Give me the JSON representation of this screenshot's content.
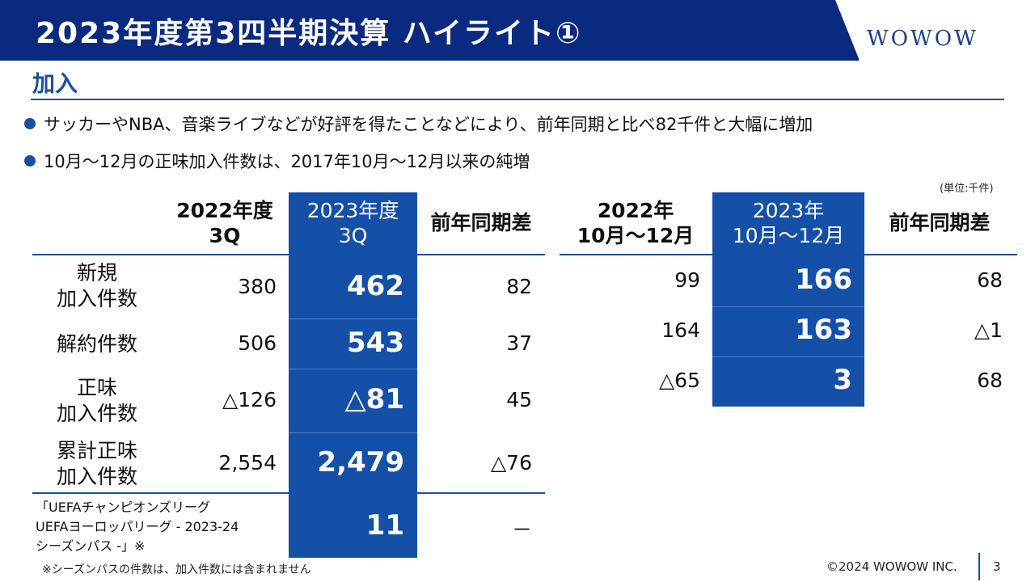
{
  "header": {
    "title": "2023年度第3四半期決算 ハイライト①",
    "logo": "WOWOW"
  },
  "section": {
    "title": "加入"
  },
  "bullets": [
    "サッカーやNBA、音楽ライブなどが好評を得たことなどにより、前年同期と比べ82千件と大幅に増加",
    "10月～12月の正味加入件数は、2017年10月～12月以来の純増"
  ],
  "unit_note": "(単位:千件)",
  "left_table": {
    "headers": [
      "2022年度\n3Q",
      "2023年度\n3Q",
      "前年同期差"
    ],
    "rows": [
      {
        "label": "新規\n加入件数",
        "values": [
          "380",
          "462",
          "82"
        ]
      },
      {
        "label": "解約件数",
        "values": [
          "506",
          "543",
          "37"
        ]
      },
      {
        "label": "正味\n加入件数",
        "values": [
          "△126",
          "△81",
          "45"
        ]
      },
      {
        "label": "累計正味\n加入件数",
        "values": [
          "2,554",
          "2,479",
          "△76"
        ]
      },
      {
        "label": "「UEFAチャンピオンズリーグ\nUEFAヨーロッパリーグ - 2023-24\nシーズンパス -」※",
        "values": [
          "",
          "11",
          "－"
        ]
      }
    ]
  },
  "right_table": {
    "headers": [
      "2022年\n10月～12月",
      "2023年\n10月～12月",
      "前年同期差"
    ],
    "rows": [
      {
        "values": [
          "99",
          "166",
          "68"
        ]
      },
      {
        "values": [
          "164",
          "163",
          "△1"
        ]
      },
      {
        "values": [
          "△65",
          "3",
          "68"
        ]
      }
    ]
  },
  "colors": {
    "primary": "#1450a8",
    "header": "#0a2a80"
  },
  "footer": {
    "note": "※シーズンパスの件数は、加入件数には含まれません",
    "copyright": "©2024 WOWOW INC.",
    "page": "3"
  }
}
